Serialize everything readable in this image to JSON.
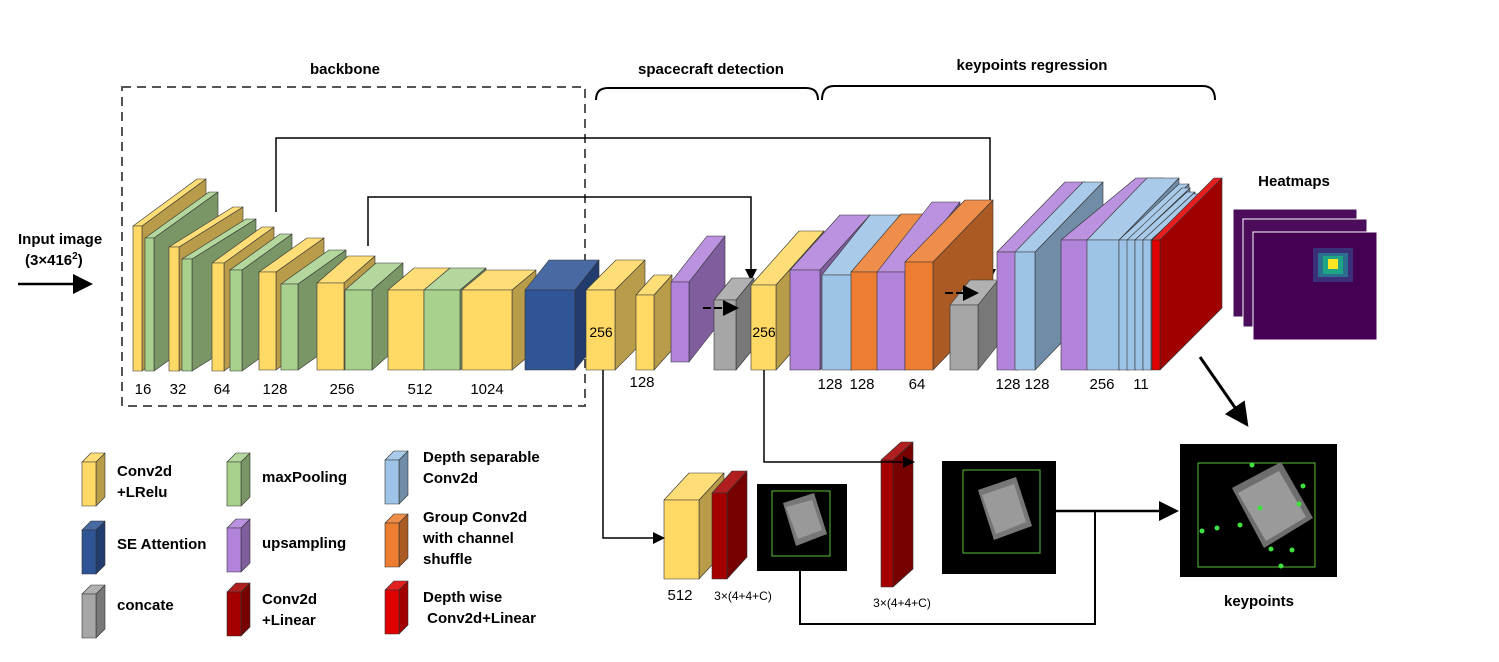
{
  "sections": {
    "backbone": "backbone",
    "spacecraft_detection": "spacecraft detection",
    "keypoints_regression": "keypoints regression"
  },
  "input": {
    "line1": "Input image",
    "line2_prefix": "(3×416",
    "line2_sup": "2",
    "line2_suffix": ")"
  },
  "heatmaps_label": "Heatmaps",
  "keypoints_label": "keypoints",
  "channels": {
    "b16": "16",
    "b32": "32",
    "b64": "64",
    "b128": "128",
    "b256": "256",
    "b512": "512",
    "b1024": "1024",
    "d256": "256",
    "d128": "128",
    "c256": "256",
    "k128a": "128",
    "k128b": "128",
    "k64": "64",
    "r128a": "128",
    "r128b": "128",
    "r256": "256",
    "r11": "11",
    "o512": "512",
    "o3x1": "3×(4+4+C)",
    "o3x2": "3×(4+4+C)"
  },
  "legend": {
    "conv_lrelu": [
      "Conv2d",
      "+LRelu"
    ],
    "se_attention": [
      "SE Attention"
    ],
    "concate": [
      "concate"
    ],
    "maxpooling": [
      "maxPooling"
    ],
    "upsampling": [
      "upsampling"
    ],
    "conv_linear": [
      "Conv2d",
      "+Linear"
    ],
    "depth_separable": [
      "Depth  separable",
      "Conv2d"
    ],
    "group_conv": [
      "Group Conv2d",
      "with channel",
      "shuffle"
    ],
    "depth_wise": [
      "Depth wise",
      " Conv2d+Linear"
    ]
  },
  "colors": {
    "yellow": "#FFD966",
    "green": "#A9D18E",
    "blue_se": "#2F5597",
    "gray": "#A6A6A6",
    "purple": "#B283DB",
    "dark_red": "#A50000",
    "light_blue": "#9DC3E6",
    "orange": "#ED7D31",
    "red": "#E00000",
    "heatmap_bg": "#4B0C5B"
  }
}
